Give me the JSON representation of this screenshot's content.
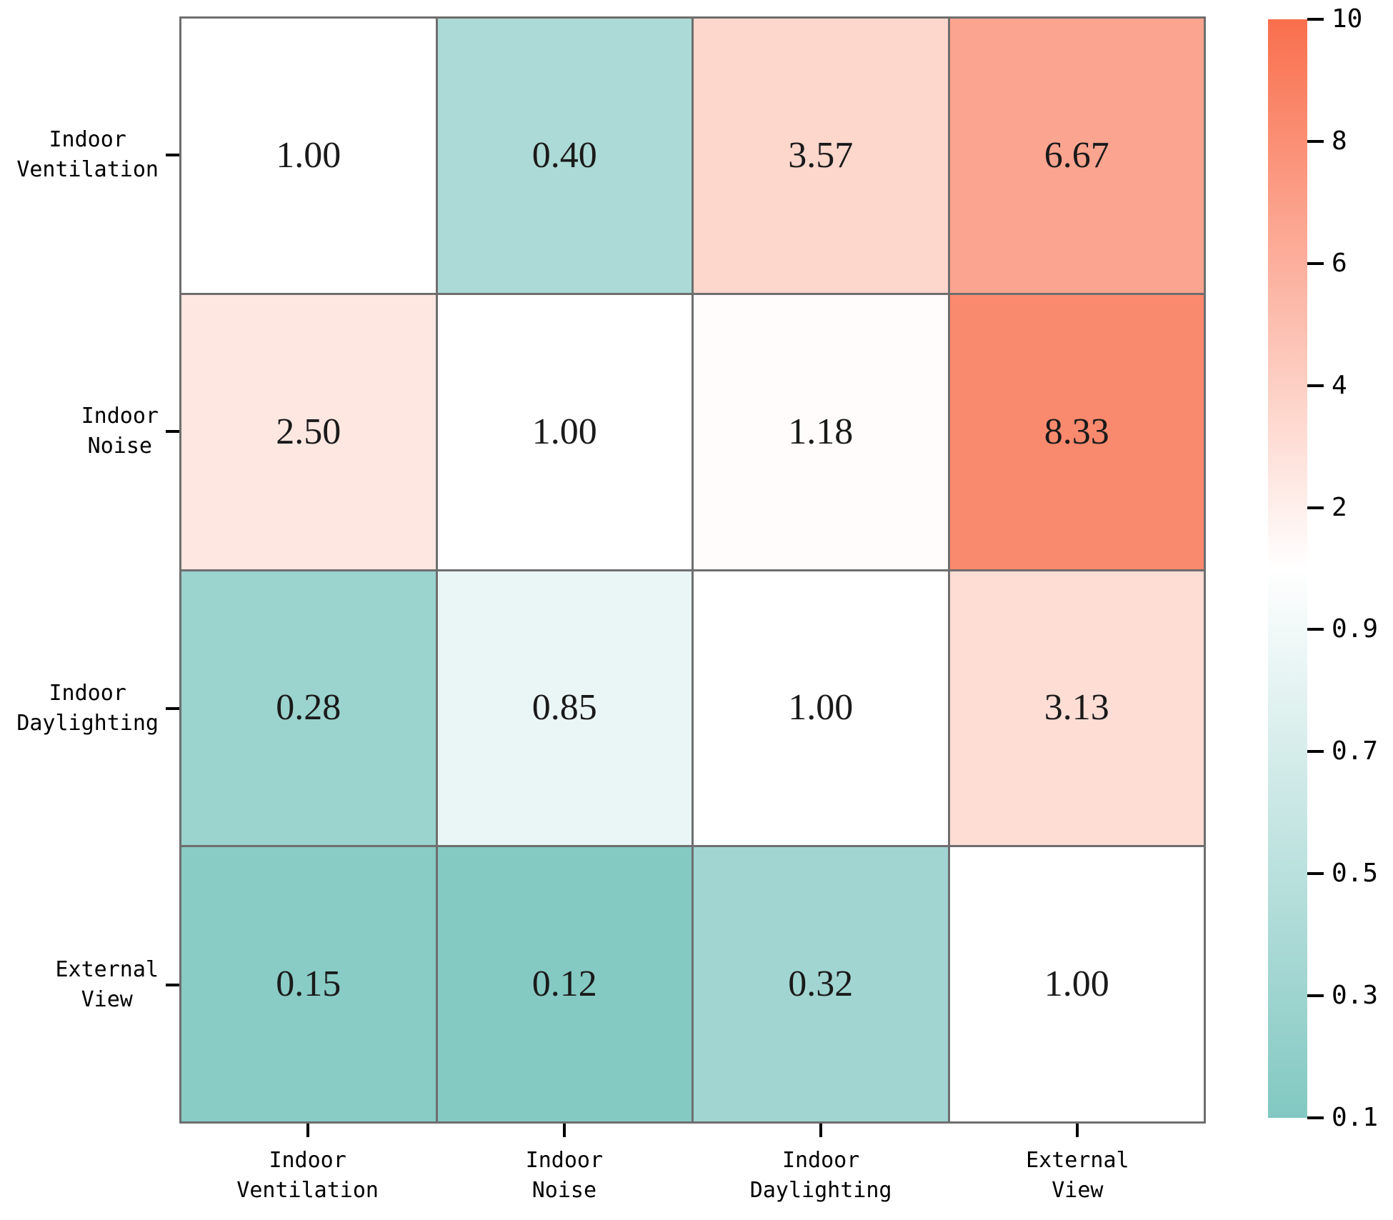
{
  "chart_data": {
    "type": "heatmap",
    "title": "",
    "xlabel": "",
    "ylabel": "",
    "rows": [
      "Indoor Ventilation",
      "Indoor Noise",
      "Indoor Daylighting",
      "External View"
    ],
    "cols": [
      "Indoor Ventilation",
      "Indoor Noise",
      "Indoor Daylighting",
      "External View"
    ],
    "row_label_lines": [
      [
        "Indoor",
        "Ventilation"
      ],
      [
        "Indoor",
        "Noise"
      ],
      [
        "Indoor",
        "Daylighting"
      ],
      [
        "External",
        "View"
      ]
    ],
    "col_label_lines": [
      [
        "Indoor",
        "Ventilation"
      ],
      [
        "Indoor",
        "Noise"
      ],
      [
        "Indoor",
        "Daylighting"
      ],
      [
        "External",
        "View"
      ]
    ],
    "values": [
      [
        1.0,
        0.4,
        3.57,
        6.67
      ],
      [
        2.5,
        1.0,
        1.18,
        8.33
      ],
      [
        0.28,
        0.85,
        1.0,
        3.13
      ],
      [
        0.15,
        0.12,
        0.32,
        1.0
      ]
    ],
    "cell_labels": [
      [
        "1.00",
        "0.40",
        "3.57",
        "6.67"
      ],
      [
        "2.50",
        "1.00",
        "1.18",
        "8.33"
      ],
      [
        "0.28",
        "0.85",
        "1.00",
        "3.13"
      ],
      [
        "0.15",
        "0.12",
        "0.32",
        "1.00"
      ]
    ],
    "scale": {
      "type": "two-slope-linear",
      "vmin": 0.1,
      "vcenter": 1,
      "vmax": 10
    },
    "colorbar_ticks": [
      {
        "label": "10",
        "value": 10
      },
      {
        "label": "8",
        "value": 8
      },
      {
        "label": "6",
        "value": 6
      },
      {
        "label": "4",
        "value": 4
      },
      {
        "label": "2",
        "value": 2
      },
      {
        "label": "0.9",
        "value": 0.9
      },
      {
        "label": "0.7",
        "value": 0.7
      },
      {
        "label": "0.5",
        "value": 0.5
      },
      {
        "label": "0.3",
        "value": 0.3
      },
      {
        "label": "0.1",
        "value": 0.1
      }
    ],
    "legend_position": "right",
    "grid": "on",
    "colors": {
      "cmap_high": "#F96F4D",
      "cmap_mid": "#FFFFFF",
      "cmap_low": "#82C8C2",
      "gridline": "#6E6E6E",
      "cell_text": "#1A1A1A",
      "axis_text": "#000000"
    }
  }
}
